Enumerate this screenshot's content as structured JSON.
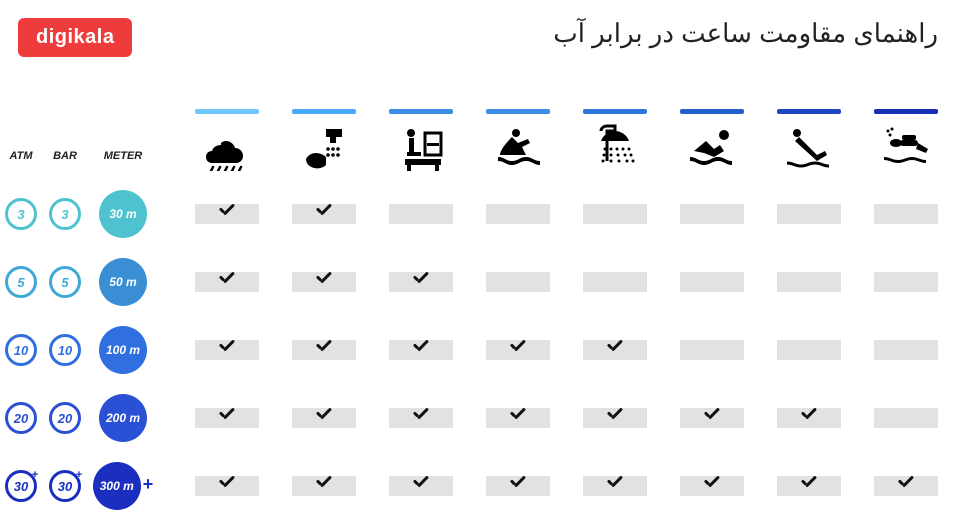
{
  "logo_text": "digikala",
  "logo_bg": "#ee3b3b",
  "title": "راهنمای مقاومت ساعت در برابر آب",
  "background_color": "#ffffff",
  "cell_bg": "#e2e2e2",
  "check_color": "#111111",
  "unit_headers": {
    "atm": "ATM",
    "bar": "BAR",
    "meter": "METER"
  },
  "activities": [
    {
      "id": "rain",
      "bar_color": "#6fc6ff"
    },
    {
      "id": "wash",
      "bar_color": "#4aa8ff"
    },
    {
      "id": "sink",
      "bar_color": "#3d8de6"
    },
    {
      "id": "jetski",
      "bar_color": "#3d8de6"
    },
    {
      "id": "shower",
      "bar_color": "#2f77dc"
    },
    {
      "id": "swim",
      "bar_color": "#245fd0"
    },
    {
      "id": "dive",
      "bar_color": "#1e46c4"
    },
    {
      "id": "scuba",
      "bar_color": "#1830b8"
    }
  ],
  "rows": [
    {
      "atm": "3",
      "bar": "3",
      "meter": "30 m",
      "atm_color": "#4ec3cf",
      "bar_color": "#4ec3cf",
      "meter_fill": "#4ec3cf",
      "plus": false,
      "checks": [
        true,
        true,
        false,
        false,
        false,
        false,
        false,
        false
      ]
    },
    {
      "atm": "5",
      "bar": "5",
      "meter": "50 m",
      "atm_color": "#3fa8d8",
      "bar_color": "#3fa8d8",
      "meter_fill": "#3a8fd4",
      "plus": false,
      "checks": [
        true,
        true,
        true,
        false,
        false,
        false,
        false,
        false
      ]
    },
    {
      "atm": "10",
      "bar": "10",
      "meter": "100 m",
      "atm_color": "#2f6fe0",
      "bar_color": "#2f6fe0",
      "meter_fill": "#2f6fe0",
      "plus": false,
      "checks": [
        true,
        true,
        true,
        true,
        true,
        false,
        false,
        false
      ]
    },
    {
      "atm": "20",
      "bar": "20",
      "meter": "200 m",
      "atm_color": "#2a50d5",
      "bar_color": "#2a50d5",
      "meter_fill": "#2a50d5",
      "plus": false,
      "checks": [
        true,
        true,
        true,
        true,
        true,
        true,
        true,
        false
      ]
    },
    {
      "atm": "30",
      "bar": "30",
      "meter": "300 m",
      "atm_color": "#1a2fc0",
      "bar_color": "#1a2fc0",
      "meter_fill": "#1a2fc0",
      "plus": true,
      "checks": [
        true,
        true,
        true,
        true,
        true,
        true,
        true,
        true
      ]
    }
  ]
}
